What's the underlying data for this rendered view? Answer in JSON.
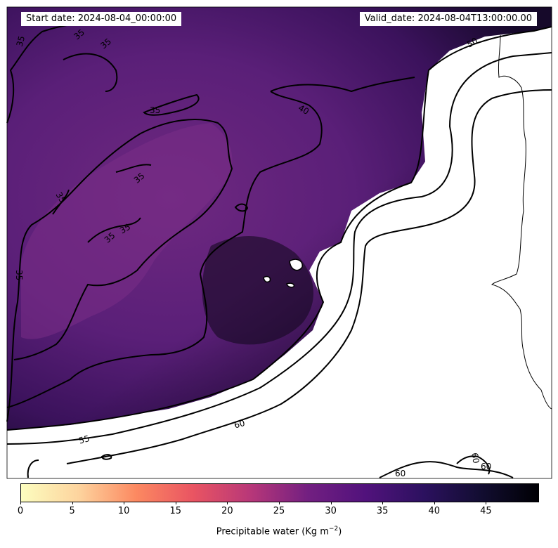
{
  "header": {
    "start": "Start date: 2024-08-04_00:00:00",
    "valid": "Valid_date: 2024-08-04T13:00:00.00"
  },
  "colorbar": {
    "label_prefix": "Precipitable water (Kg m",
    "label_exp": "−2",
    "label_suffix": ")",
    "ticks": [
      "0",
      "5",
      "10",
      "15",
      "20",
      "25",
      "30",
      "35",
      "40",
      "45"
    ],
    "tick_values": [
      0,
      5,
      10,
      15,
      20,
      25,
      30,
      35,
      40,
      45
    ],
    "range": [
      0,
      50
    ],
    "colormap": "magma_r",
    "colors": [
      "#fcfdbf",
      "#fdd49e",
      "#fc8961",
      "#e95462",
      "#b73779",
      "#721f81",
      "#51127c",
      "#2c115f",
      "#120d31",
      "#000004"
    ]
  },
  "contours": {
    "labels": [
      "35",
      "35",
      "35",
      "35",
      "35",
      "35",
      "35",
      "35",
      "35",
      "40",
      "50",
      "55",
      "60",
      "60",
      "60",
      "60"
    ]
  }
}
